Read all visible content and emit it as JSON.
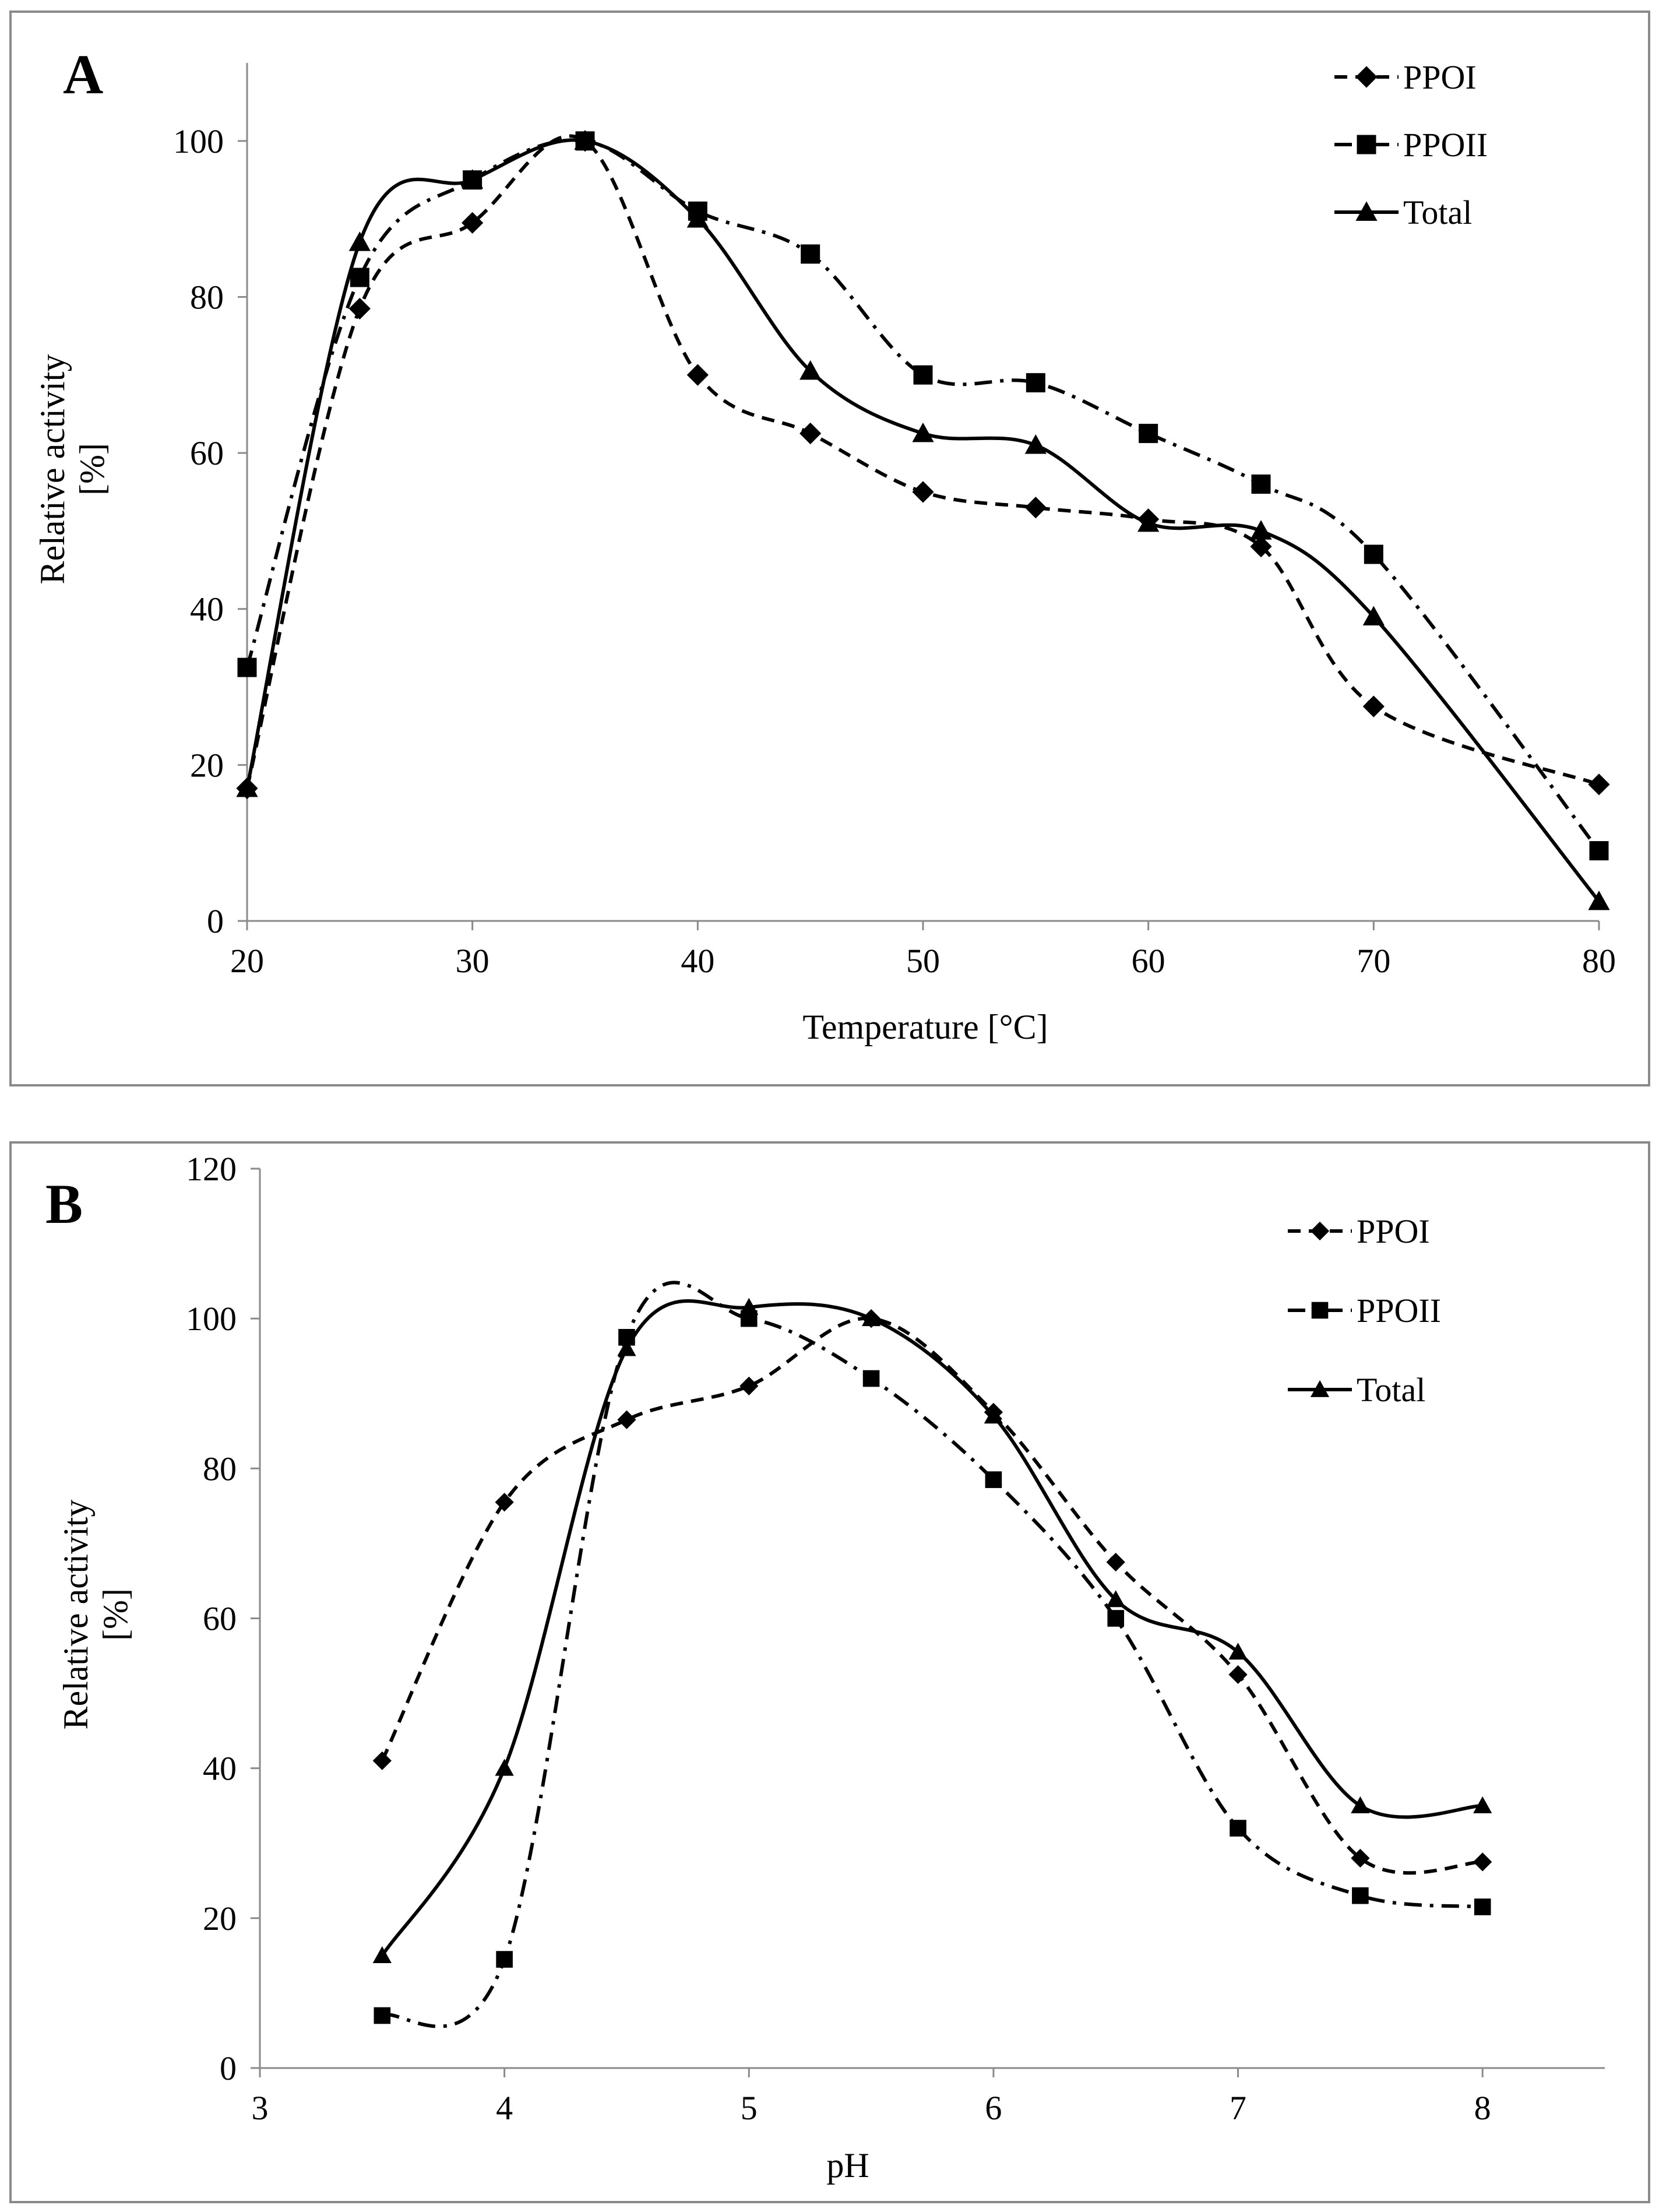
{
  "chart_data": [
    {
      "type": "line",
      "panel_label": "A",
      "title": "",
      "xlabel": "Temperature [°C]",
      "ylabel": [
        "Relative activity",
        "[%]"
      ],
      "xlim": [
        20,
        80
      ],
      "ylim": [
        0,
        110
      ],
      "xticks": [
        20,
        30,
        40,
        50,
        60,
        70,
        80
      ],
      "yticks": [
        0,
        20,
        40,
        60,
        80,
        100
      ],
      "grid": false,
      "legend_position": "top-right",
      "series": [
        {
          "name": "PPOI",
          "style": "dashed",
          "marker": "diamond",
          "x": [
            20,
            25,
            30,
            35,
            40,
            45,
            50,
            55,
            60,
            65,
            70,
            80
          ],
          "y": [
            17,
            78.5,
            89.5,
            100,
            70,
            62.5,
            55,
            53,
            51.5,
            48,
            27.5,
            17.5
          ]
        },
        {
          "name": "PPOII",
          "style": "dashdot",
          "marker": "square",
          "x": [
            20,
            25,
            30,
            35,
            40,
            45,
            50,
            55,
            60,
            65,
            70,
            80
          ],
          "y": [
            32.5,
            82.5,
            95,
            100,
            91,
            85.5,
            70,
            69,
            62.5,
            56,
            47,
            9
          ]
        },
        {
          "name": "Total",
          "style": "solid",
          "marker": "triangle",
          "x": [
            20,
            25,
            30,
            35,
            40,
            45,
            50,
            55,
            60,
            65,
            70,
            80
          ],
          "y": [
            17,
            87,
            95,
            100,
            90,
            70.5,
            62.5,
            61,
            51,
            50,
            39,
            2.5
          ]
        }
      ]
    },
    {
      "type": "line",
      "panel_label": "B",
      "title": "",
      "xlabel": "pH",
      "ylabel": [
        "Relative activity",
        "[%]"
      ],
      "xlim": [
        3,
        8.5
      ],
      "ylim": [
        0,
        120
      ],
      "xticks": [
        3,
        4,
        5,
        6,
        7,
        8
      ],
      "yticks": [
        0,
        20,
        40,
        60,
        80,
        100,
        120
      ],
      "grid": false,
      "legend_position": "top-right",
      "series": [
        {
          "name": "PPOI",
          "style": "dashed",
          "marker": "diamond",
          "x": [
            3.5,
            4,
            4.5,
            5,
            5.5,
            6,
            6.5,
            7,
            7.5,
            8
          ],
          "y": [
            41,
            75.5,
            86.5,
            91,
            100,
            87.5,
            67.5,
            52.5,
            28,
            27.5
          ]
        },
        {
          "name": "PPOII",
          "style": "dashdot",
          "marker": "square",
          "x": [
            3.5,
            4,
            4.5,
            5,
            5.5,
            6,
            6.5,
            7,
            7.5,
            8
          ],
          "y": [
            7,
            14.5,
            97.5,
            100,
            92,
            78.5,
            60,
            32,
            23,
            21.5
          ]
        },
        {
          "name": "Total",
          "style": "solid",
          "marker": "triangle",
          "x": [
            3.5,
            4,
            4.5,
            5,
            5.5,
            6,
            6.5,
            7,
            7.5,
            8
          ],
          "y": [
            15,
            40,
            96,
            101.5,
            100,
            87,
            62.5,
            55.5,
            35,
            35
          ]
        }
      ]
    }
  ]
}
